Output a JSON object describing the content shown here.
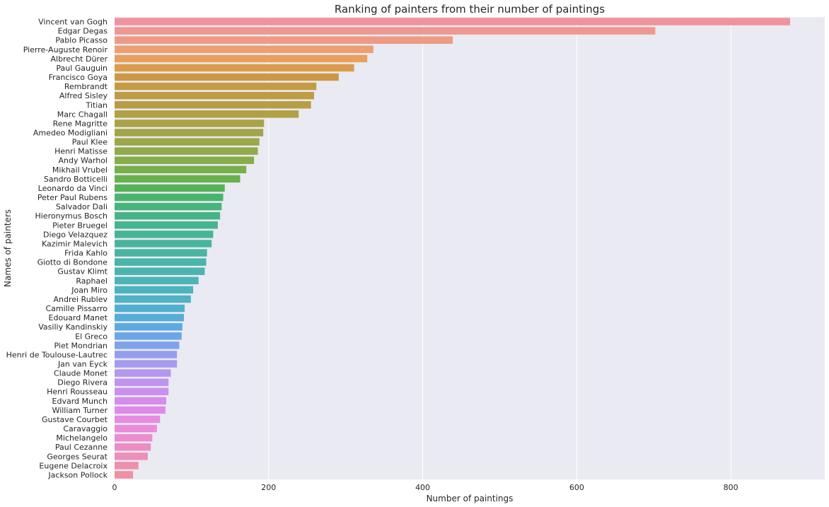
{
  "chart_data": {
    "type": "bar",
    "orientation": "horizontal",
    "title": "Ranking of painters from their number of paintings",
    "xlabel": "Number of paintings",
    "ylabel": "Names of painters",
    "xlim": [
      0,
      922
    ],
    "xticks": [
      0,
      200,
      400,
      600,
      800
    ],
    "grid": true,
    "categories": [
      "Vincent van Gogh",
      "Edgar Degas",
      "Pablo Picasso",
      "Pierre-Auguste Renoir",
      "Albrecht Dürer",
      "Paul Gauguin",
      "Francisco Goya",
      "Rembrandt",
      "Alfred Sisley",
      "Titian",
      "Marc Chagall",
      "Rene Magritte",
      "Amedeo Modigliani",
      "Paul Klee",
      "Henri Matisse",
      "Andy Warhol",
      "Mikhail Vrubel",
      "Sandro Botticelli",
      "Leonardo da Vinci",
      "Peter Paul Rubens",
      "Salvador Dali",
      "Hieronymus Bosch",
      "Pieter Bruegel",
      "Diego Velazquez",
      "Kazimir Malevich",
      "Frida Kahlo",
      "Giotto di Bondone",
      "Gustav Klimt",
      "Raphael",
      "Joan Miro",
      "Andrei Rublev",
      "Camille Pissarro",
      "Edouard Manet",
      "Vasiliy Kandinskiy",
      "El Greco",
      "Piet Mondrian",
      "Henri de Toulouse-Lautrec",
      "Jan van Eyck",
      "Claude Monet",
      "Diego Rivera",
      "Henri Rousseau",
      "Edvard Munch",
      "William Turner",
      "Gustave Courbet",
      "Caravaggio",
      "Michelangelo",
      "Paul Cezanne",
      "Georges Seurat",
      "Eugene Delacroix",
      "Jackson Pollock"
    ],
    "values": [
      877,
      702,
      439,
      336,
      328,
      311,
      291,
      262,
      259,
      255,
      239,
      194,
      193,
      188,
      186,
      181,
      171,
      163,
      143,
      141,
      139,
      137,
      134,
      128,
      126,
      120,
      119,
      117,
      109,
      102,
      99,
      91,
      90,
      88,
      87,
      84,
      81,
      81,
      73,
      70,
      70,
      67,
      66,
      59,
      55,
      49,
      47,
      43,
      31,
      24
    ],
    "colors": [
      "#f0939c",
      "#ef9791",
      "#ee9a84",
      "#ec9f72",
      "#e9a05e",
      "#dc9b4b",
      "#cd9846",
      "#c49b45",
      "#bd9c45",
      "#b79e45",
      "#b1a046",
      "#aaa247",
      "#a3a447",
      "#9ca748",
      "#93a94a",
      "#87ac4b",
      "#78ae4c",
      "#67b04d",
      "#55b15a",
      "#4ab46e",
      "#47b47c",
      "#47b488",
      "#47b490",
      "#48b496",
      "#49b49c",
      "#4ab4a2",
      "#4ab4a8",
      "#4bb4ae",
      "#4cb4b6",
      "#4db3be",
      "#4fb2c6",
      "#52b0cf",
      "#56add8",
      "#5daae2",
      "#6ba6e8",
      "#80a2ec",
      "#949eed",
      "#a69bee",
      "#b497ee",
      "#c093ee",
      "#ca90ee",
      "#d48deb",
      "#de8ae7",
      "#e68be2",
      "#ea8bd9",
      "#eb8ccf",
      "#ec8dc5",
      "#ed8ebb",
      "#ee8faf",
      "#ef90a4"
    ],
    "background": "#eaeaf2",
    "gridColor": "#ffffff"
  }
}
